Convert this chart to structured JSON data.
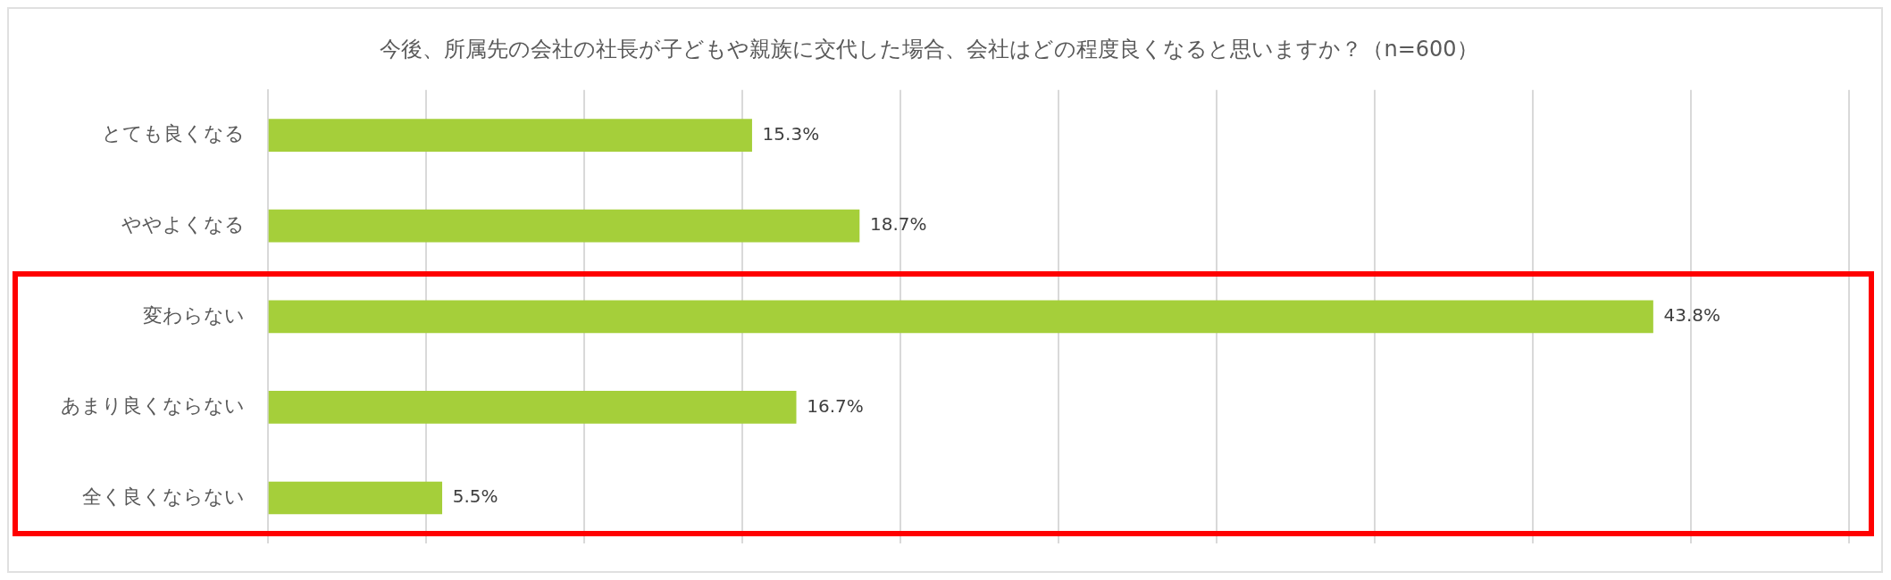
{
  "chart_data": {
    "type": "bar",
    "orientation": "horizontal",
    "title": "今後、所属先の会社の社長が子どもや親族に交代した場合、会社はどの程度良くなると思いますか？（n=600）",
    "categories": [
      "とても良くなる",
      "ややよくなる",
      "変わらない",
      "あまり良くならない",
      "全く良くならない"
    ],
    "values": [
      15.3,
      18.7,
      43.8,
      16.7,
      5.5
    ],
    "value_labels": [
      "15.3%",
      "18.7%",
      "43.8%",
      "16.7%",
      "5.5%"
    ],
    "color": "#a5cf3a",
    "xlim": [
      0,
      50
    ],
    "xticks": [
      {
        "value": 0,
        "label": null
      },
      {
        "value": 5,
        "label": null
      },
      {
        "value": 10,
        "label": null
      },
      {
        "value": 15,
        "label": null
      },
      {
        "value": 20,
        "label": null
      },
      {
        "value": 25,
        "label": null
      },
      {
        "value": 30,
        "label": null
      },
      {
        "value": 35,
        "label": null
      },
      {
        "value": 40,
        "label": null
      },
      {
        "value": 45,
        "label": null
      },
      {
        "value": 50,
        "label": null
      }
    ],
    "tick_labels": "y",
    "grid": "x",
    "legend": false
  }
}
